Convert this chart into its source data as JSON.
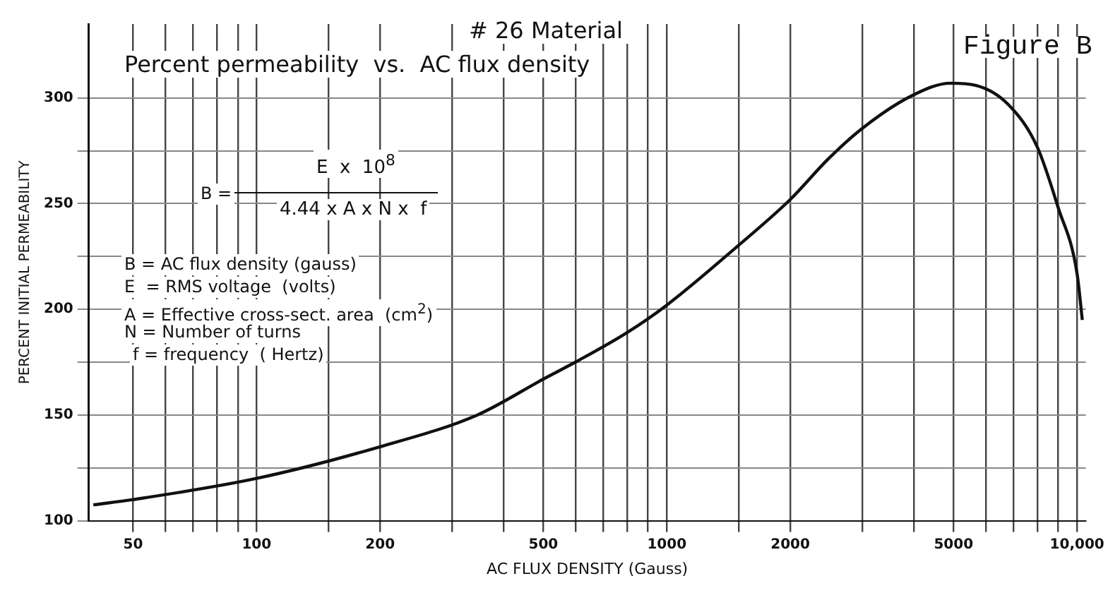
{
  "chart_data": {
    "type": "line",
    "title": "# 26 Material",
    "subtitle": "Percent permeability  vs.  AC flux density",
    "xlabel": "AC FLUX DENSITY (Gauss)",
    "ylabel": "PERCENT INITIAL PERMEABILITY",
    "log": "x",
    "grid": true,
    "legend": false,
    "marker": "none",
    "line_style": "solid",
    "x": [
      40,
      50,
      100,
      200,
      345,
      500,
      605,
      800,
      1000,
      1490,
      2000,
      2470,
      2990,
      3950,
      4920,
      5660,
      6790,
      7990,
      9000,
      10000,
      10300
    ],
    "series": [
      {
        "color": "#111111",
        "values": [
          107.5,
          110,
          120,
          135,
          150,
          167,
          175.5,
          189,
          202,
          230,
          252,
          271,
          285.5,
          301,
          307,
          306,
          297,
          277,
          248,
          217,
          195
        ]
      }
    ],
    "xlim": [
      39,
      10500
    ],
    "ylim": [
      100,
      335
    ],
    "xticks": [
      50,
      {
        "value": 60,
        "label": null
      },
      {
        "value": 70,
        "label": null
      },
      {
        "value": 80,
        "label": null
      },
      {
        "value": 90,
        "label": null
      },
      100,
      {
        "value": 150,
        "label": null
      },
      200,
      {
        "value": 300,
        "label": null
      },
      {
        "value": 400,
        "label": null
      },
      500,
      {
        "value": 600,
        "label": null
      },
      {
        "value": 700,
        "label": null
      },
      {
        "value": 800,
        "label": null
      },
      {
        "value": 900,
        "label": null
      },
      1000,
      {
        "value": 1500,
        "label": null
      },
      2000,
      {
        "value": 3000,
        "label": null
      },
      {
        "value": 4000,
        "label": null
      },
      5000,
      {
        "value": 6000,
        "label": null
      },
      {
        "value": 7000,
        "label": null
      },
      {
        "value": 8000,
        "label": null
      },
      {
        "value": 9000,
        "label": null
      },
      {
        "value": 10000,
        "label": "10,000"
      }
    ],
    "yticks": [
      100,
      {
        "value": 125,
        "label": null
      },
      150,
      {
        "value": 175,
        "label": null
      },
      200,
      {
        "value": 225,
        "label": null
      },
      250,
      {
        "value": 275,
        "label": null
      },
      300
    ],
    "annotations": [
      "Figure B",
      "B =",
      "E  x  10$^{8}$",
      "4.44 x A x N x  f",
      "B = AC flux density (gauss)",
      "E  = RMS voltage  (volts)",
      "A = Effective cross-sect. area  (cm$^{2}$)",
      "N = Number of turns",
      "f = frequency  ( Hertz)"
    ]
  }
}
